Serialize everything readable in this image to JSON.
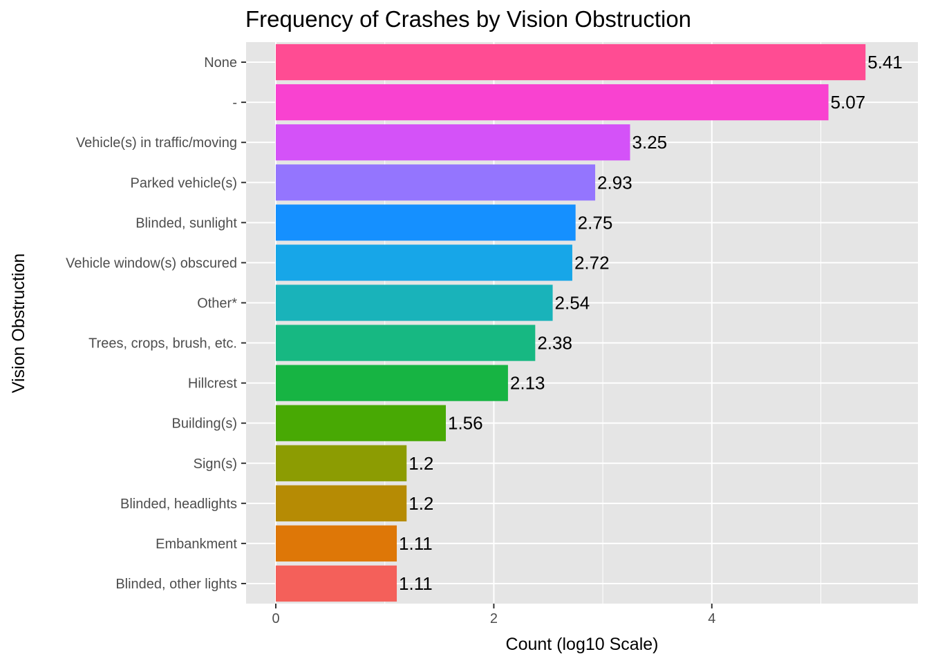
{
  "chart_data": {
    "type": "bar",
    "orientation": "horizontal",
    "title": "Frequency of Crashes by Vision Obstruction",
    "xlabel": "Count (log10 Scale)",
    "ylabel": "Vision Obstruction",
    "xlim": [
      -0.28,
      5.68
    ],
    "x_ticks": [
      0,
      2,
      4
    ],
    "x_tick_labels": [
      "0",
      "2",
      "4"
    ],
    "grid": true,
    "legend": "none",
    "panel_background": "#e5e5e5",
    "categories": [
      "None",
      "-",
      "Vehicle(s) in traffic/moving",
      "Parked vehicle(s)",
      "Blinded, sunlight",
      "Vehicle window(s) obscured",
      "Other*",
      "Trees, crops, brush, etc.",
      "Hillcrest",
      "Building(s)",
      "Sign(s)",
      "Blinded, headlights",
      "Embankment",
      "Blinded, other lights"
    ],
    "values": [
      5.41,
      5.07,
      3.25,
      2.93,
      2.75,
      2.72,
      2.54,
      2.38,
      2.13,
      1.56,
      1.2,
      1.2,
      1.11,
      1.11
    ],
    "value_labels": [
      "5.41",
      "5.07",
      "3.25",
      "2.93",
      "2.75",
      "2.72",
      "2.54",
      "2.38",
      "2.13",
      "1.56",
      "1.2",
      "1.2",
      "1.11",
      "1.11"
    ],
    "colors": [
      "#FF4C93",
      "#F942D0",
      "#D452F8",
      "#9475FE",
      "#1590FF",
      "#17A6E8",
      "#19B3BA",
      "#17B882",
      "#17B443",
      "#48A904",
      "#8C9C02",
      "#B68B04",
      "#DE7707",
      "#F4605A"
    ]
  }
}
